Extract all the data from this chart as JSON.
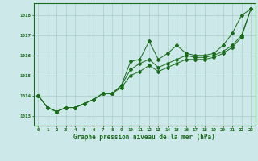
{
  "title": "Graphe pression niveau de la mer (hPa)",
  "bg_color": "#cce8e8",
  "line_color": "#1a6b1a",
  "grid_color": "#aacccc",
  "xlim": [
    -0.5,
    23.5
  ],
  "ylim": [
    1012.5,
    1018.6
  ],
  "yticks": [
    1013,
    1014,
    1015,
    1016,
    1017,
    1018
  ],
  "xticks": [
    0,
    1,
    2,
    3,
    4,
    5,
    6,
    7,
    8,
    9,
    10,
    11,
    12,
    13,
    14,
    15,
    16,
    17,
    18,
    19,
    20,
    21,
    22,
    23
  ],
  "series1": [
    1014.0,
    1013.4,
    1013.2,
    1013.4,
    1013.4,
    1013.6,
    1013.8,
    1014.1,
    1014.1,
    1014.5,
    1015.7,
    1015.8,
    1016.7,
    1015.8,
    1016.1,
    1016.5,
    1016.1,
    1016.0,
    1016.0,
    1016.1,
    1016.5,
    1017.1,
    1018.0,
    1018.3
  ],
  "series2": [
    1014.0,
    1013.4,
    1013.2,
    1013.4,
    1013.4,
    1013.6,
    1013.8,
    1014.1,
    1014.1,
    1014.5,
    1015.3,
    1015.6,
    1015.8,
    1015.4,
    1015.6,
    1015.8,
    1016.0,
    1015.9,
    1015.9,
    1016.0,
    1016.2,
    1016.5,
    1017.0,
    1018.3
  ],
  "series3": [
    1014.0,
    1013.4,
    1013.2,
    1013.4,
    1013.4,
    1013.6,
    1013.8,
    1014.1,
    1014.1,
    1014.4,
    1015.0,
    1015.2,
    1015.5,
    1015.2,
    1015.4,
    1015.6,
    1015.8,
    1015.8,
    1015.8,
    1015.9,
    1016.1,
    1016.4,
    1016.9,
    1018.3
  ],
  "title_fontsize": 5.5,
  "tick_fontsize": 4.2,
  "marker_size": 2.0,
  "line_width": 0.7
}
